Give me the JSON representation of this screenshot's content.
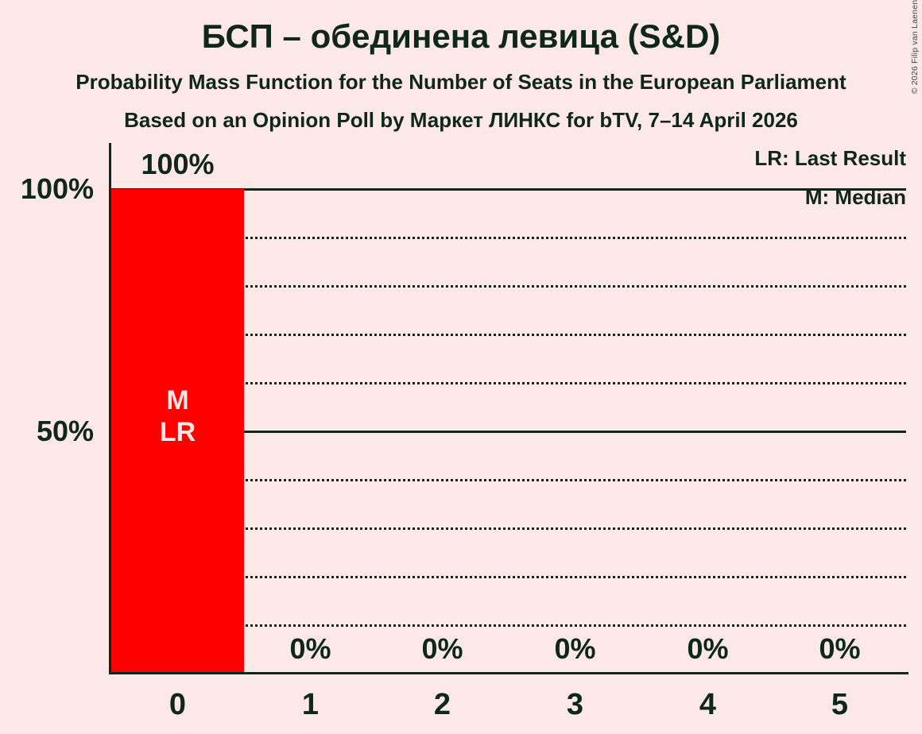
{
  "copyright": "© 2026 Filip van Laenen",
  "colors": {
    "background": "#fce8e7",
    "bar": "#ff0000",
    "text": "#0e271a",
    "bar_label": "#f8e6e4"
  },
  "chart_data": {
    "type": "bar",
    "title": "БСП – обединена левица (S&D)",
    "subtitle": "Probability Mass Function for the Number of Seats in the European Parliament",
    "source_line": "Based on an Opinion Poll by Маркет ЛИНКС for bTV, 7–14 April 2026",
    "xlabel": "",
    "ylabel": "",
    "categories": [
      "0",
      "1",
      "2",
      "3",
      "4",
      "5"
    ],
    "values": [
      100,
      0,
      0,
      0,
      0,
      0
    ],
    "value_labels": [
      "100%",
      "0%",
      "0%",
      "0%",
      "0%",
      "0%"
    ],
    "bar_annotations": [
      [
        "M",
        "LR"
      ],
      [],
      [],
      [],
      [],
      []
    ],
    "median_seats": 0,
    "last_result_seats": 0,
    "ylim": [
      0,
      100
    ],
    "yticks": [
      {
        "value": 100,
        "label": "100%"
      },
      {
        "value": 50,
        "label": "50%"
      }
    ],
    "gridlines": [
      {
        "value": 100,
        "style": "solid"
      },
      {
        "value": 90,
        "style": "dotted"
      },
      {
        "value": 80,
        "style": "dotted"
      },
      {
        "value": 70,
        "style": "dotted"
      },
      {
        "value": 60,
        "style": "dotted"
      },
      {
        "value": 50,
        "style": "solid"
      },
      {
        "value": 40,
        "style": "dotted"
      },
      {
        "value": 30,
        "style": "dotted"
      },
      {
        "value": 20,
        "style": "dotted"
      },
      {
        "value": 10,
        "style": "dotted"
      }
    ],
    "grid": "horizontal",
    "legend_position": "top-right",
    "legend": [
      "LR: Last Result",
      "M: Median"
    ]
  }
}
